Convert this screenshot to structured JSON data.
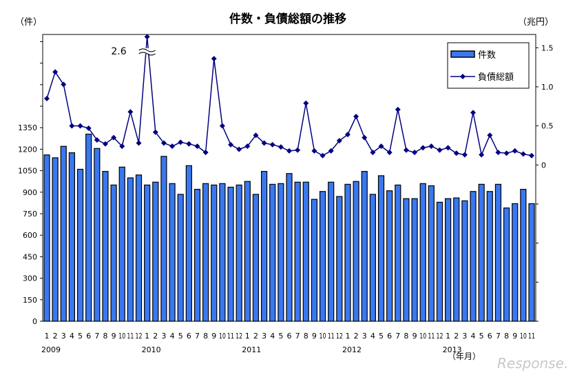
{
  "chart_data": {
    "type": "bar+line",
    "title": "件数・負債総額の推移",
    "left_axis_unit": "（件）",
    "right_axis_unit": "（兆円）",
    "x_axis_unit": "（年月）",
    "left_ticks": [
      "0",
      "150",
      "300",
      "450",
      "600",
      "750",
      "900",
      "1050",
      "1200",
      "1350"
    ],
    "right_ticks": [
      "0",
      "0.5",
      "1.0",
      "1.5"
    ],
    "ylim_left": [
      0,
      2000
    ],
    "ylim_right": [
      -2.0,
      1.67
    ],
    "years": [
      {
        "label": "2009",
        "index": 0
      },
      {
        "label": "2010",
        "index": 12
      },
      {
        "label": "2011",
        "index": 24
      },
      {
        "label": "2012",
        "index": 36
      },
      {
        "label": "2013",
        "index": 48
      }
    ],
    "month_labels": [
      "1",
      "2",
      "3",
      "4",
      "5",
      "6",
      "7",
      "8",
      "9",
      "10",
      "11",
      "12",
      "1",
      "2",
      "3",
      "4",
      "5",
      "6",
      "7",
      "8",
      "9",
      "10",
      "11",
      "12",
      "1",
      "2",
      "3",
      "4",
      "5",
      "6",
      "7",
      "8",
      "9",
      "10",
      "11",
      "12",
      "1",
      "2",
      "3",
      "4",
      "5",
      "6",
      "7",
      "8",
      "9",
      "10",
      "11",
      "12",
      "1",
      "2",
      "3",
      "4",
      "5",
      "6",
      "7",
      "8",
      "9",
      "10",
      "11"
    ],
    "series": [
      {
        "name": "件数",
        "type": "bar",
        "axis": "left",
        "color": "#3a78f0",
        "values": [
          1160,
          1140,
          1220,
          1175,
          1060,
          1305,
          1205,
          1045,
          950,
          1075,
          1000,
          1020,
          950,
          970,
          1150,
          960,
          885,
          1085,
          920,
          960,
          950,
          960,
          935,
          950,
          975,
          885,
          1045,
          955,
          960,
          1030,
          970,
          970,
          850,
          905,
          970,
          870,
          955,
          975,
          1045,
          885,
          1015,
          910,
          950,
          855,
          855,
          960,
          945,
          830,
          855,
          860,
          840,
          905,
          955,
          905,
          955,
          790,
          820,
          920,
          820
        ]
      },
      {
        "name": "負債総額",
        "type": "line",
        "axis": "right",
        "color": "#000080",
        "values": [
          0.85,
          1.19,
          1.03,
          0.5,
          0.5,
          0.47,
          0.32,
          0.27,
          0.35,
          0.24,
          0.68,
          0.28,
          2.6,
          0.42,
          0.28,
          0.24,
          0.29,
          0.27,
          0.24,
          0.16,
          1.36,
          0.5,
          0.26,
          0.2,
          0.24,
          0.38,
          0.28,
          0.26,
          0.23,
          0.18,
          0.19,
          0.79,
          0.18,
          0.12,
          0.18,
          0.31,
          0.39,
          0.62,
          0.35,
          0.16,
          0.24,
          0.16,
          0.71,
          0.19,
          0.16,
          0.22,
          0.24,
          0.19,
          0.22,
          0.15,
          0.13,
          0.67,
          0.13,
          0.38,
          0.16,
          0.15,
          0.18,
          0.14,
          0.12
        ]
      }
    ],
    "annotations": [
      {
        "text": "2.6",
        "series": "負債総額",
        "index": 12,
        "note": "axis break"
      }
    ],
    "legend_position": "top-right",
    "grid": false
  },
  "watermark": "Response."
}
